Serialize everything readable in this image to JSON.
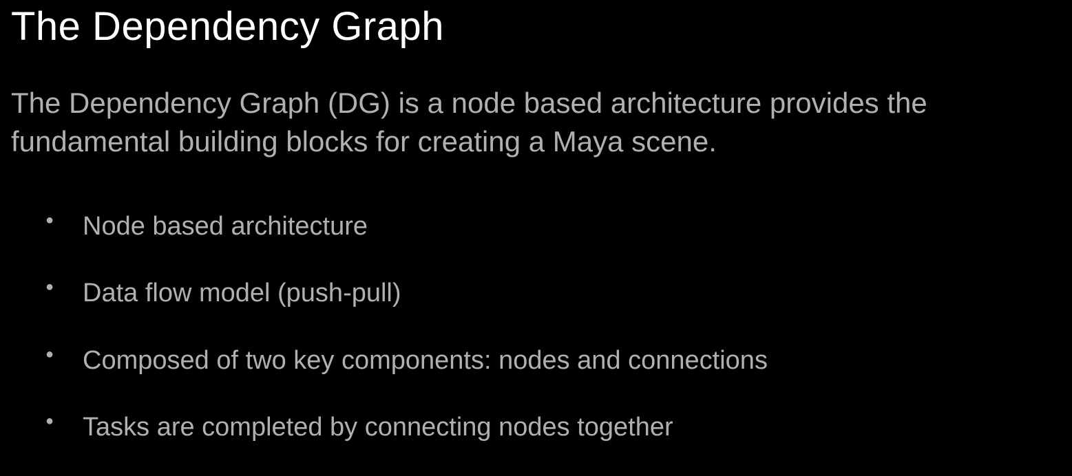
{
  "slide": {
    "title": "The Dependency Graph",
    "description": "The Dependency Graph (DG) is a node based architecture provides the fundamental building blocks for creating a Maya scene.",
    "bullets": [
      "Node based architecture",
      "Data flow model (push-pull)",
      "Composed of two key components: nodes and connections",
      "Tasks are completed by connecting nodes together"
    ]
  },
  "styling": {
    "background_color": "#000000",
    "title_color": "#ffffff",
    "body_text_color": "#b0b0b0",
    "title_fontsize": 58,
    "description_fontsize": 42,
    "bullet_fontsize": 38,
    "font_family": "Arial"
  }
}
